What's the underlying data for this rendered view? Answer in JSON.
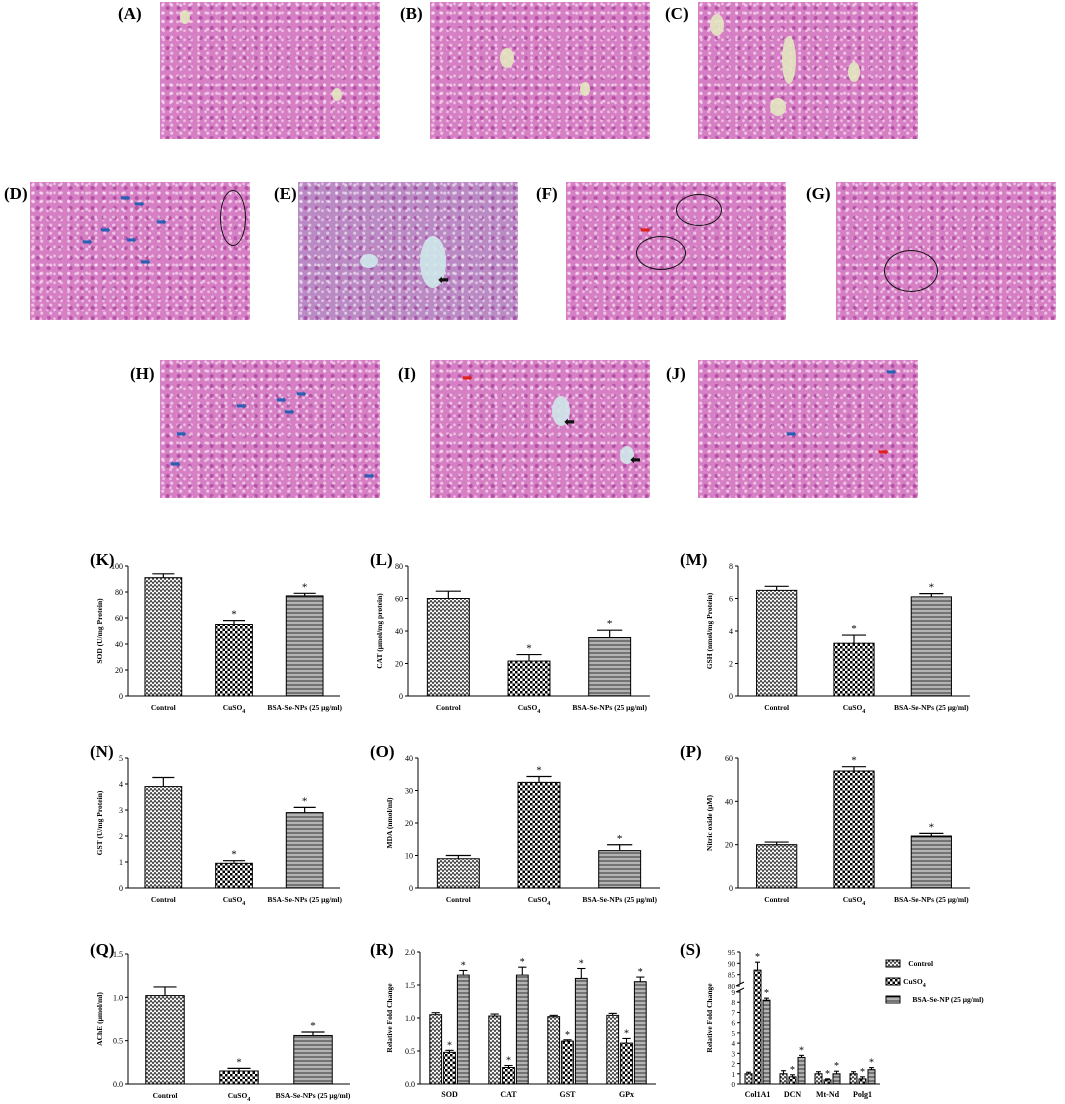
{
  "micro_panels": [
    {
      "label": "(A)",
      "arrows": [],
      "rings": 0
    },
    {
      "label": "(B)",
      "arrows": [],
      "rings": 0
    },
    {
      "label": "(C)",
      "arrows": [],
      "rings": 0
    },
    {
      "label": "(D)",
      "arrows": [
        "blue",
        "blue",
        "blue",
        "blue",
        "blue",
        "blue"
      ],
      "rings": 1
    },
    {
      "label": "(E)",
      "arrows": [
        "black"
      ],
      "rings": 0
    },
    {
      "label": "(F)",
      "arrows": [
        "red"
      ],
      "rings": 2
    },
    {
      "label": "(G)",
      "arrows": [],
      "rings": 1
    },
    {
      "label": "(H)",
      "arrows": [
        "blue",
        "blue",
        "blue",
        "blue",
        "blue",
        "blue",
        "blue"
      ],
      "rings": 0
    },
    {
      "label": "(I)",
      "arrows": [
        "red",
        "black",
        "black"
      ],
      "rings": 0
    },
    {
      "label": "(J)",
      "arrows": [
        "blue",
        "blue",
        "red"
      ],
      "rings": 0
    }
  ],
  "colors": {
    "tissue": "#d67fc4",
    "arrow_blue": "#2a5fb3",
    "arrow_red": "#e0201c",
    "arrow_black": "#111111"
  },
  "chart_data": [
    {
      "id": "K",
      "label": "(K)",
      "type": "bar",
      "ylabel": "SOD (U/mg Protein)",
      "categories": [
        "Control",
        "CuSO",
        "BSA-Se-NPs (25  μg/ml)"
      ],
      "values": [
        91,
        55,
        77
      ],
      "errors": [
        3,
        3,
        2
      ],
      "sig": [
        false,
        true,
        true
      ],
      "ylim": [
        0,
        100
      ],
      "yticks": [
        0,
        20,
        40,
        60,
        80,
        100
      ]
    },
    {
      "id": "L",
      "label": "(L)",
      "type": "bar",
      "ylabel": "CAT (μmol/mg protein)",
      "categories": [
        "Control",
        "CuSO",
        "BSA-Se-NPs (25  μg/ml)"
      ],
      "values": [
        60,
        21.5,
        36
      ],
      "errors": [
        4.5,
        4,
        4.5
      ],
      "sig": [
        false,
        true,
        true
      ],
      "ylim": [
        0,
        80
      ],
      "yticks": [
        0,
        20,
        40,
        60,
        80
      ]
    },
    {
      "id": "M",
      "label": "(M)",
      "type": "bar",
      "ylabel": "GSH (nmol/mg Protein)",
      "categories": [
        "Control",
        "CuSO",
        "BSA-Se-NPs (25  μg/ml)"
      ],
      "values": [
        6.5,
        3.25,
        6.1
      ],
      "errors": [
        0.25,
        0.5,
        0.2
      ],
      "sig": [
        false,
        true,
        true
      ],
      "ylim": [
        0,
        8
      ],
      "yticks": [
        0,
        2,
        4,
        6,
        8
      ]
    },
    {
      "id": "N",
      "label": "(N)",
      "type": "bar",
      "ylabel": "GST (U/mg Protein)",
      "categories": [
        "Control",
        "CuSO",
        "BSA-Se-NPs (25  μg/ml)"
      ],
      "values": [
        3.9,
        0.95,
        2.9
      ],
      "errors": [
        0.35,
        0.1,
        0.2
      ],
      "sig": [
        false,
        true,
        true
      ],
      "ylim": [
        0,
        5
      ],
      "yticks": [
        0,
        1,
        2,
        3,
        4,
        5
      ]
    },
    {
      "id": "O",
      "label": "(O)",
      "type": "bar",
      "ylabel": "MDA (nmol/ml)",
      "categories": [
        "Control",
        "CuSO",
        "BSA-Se-NPs (25  μg/ml)"
      ],
      "values": [
        9,
        32.5,
        11.5
      ],
      "errors": [
        1,
        1.8,
        1.8
      ],
      "sig": [
        false,
        true,
        true
      ],
      "ylim": [
        0,
        40
      ],
      "yticks": [
        0,
        10,
        20,
        30,
        40
      ]
    },
    {
      "id": "P",
      "label": "(P)",
      "type": "bar",
      "ylabel": "Nitric oxide (μM)",
      "categories": [
        "Control",
        "CuSO",
        "BSA-Se-NPs (25  μg/ml)"
      ],
      "values": [
        20,
        54,
        24
      ],
      "errors": [
        1.2,
        2,
        1.2
      ],
      "sig": [
        false,
        true,
        true
      ],
      "ylim": [
        0,
        60
      ],
      "yticks": [
        0,
        20,
        40,
        60
      ]
    },
    {
      "id": "Q",
      "label": "(Q)",
      "type": "bar",
      "ylabel": "AChE (μmol/ml)",
      "categories": [
        "Control",
        "CuSO",
        "BSA-Se-NPs (25  μg/ml)"
      ],
      "values": [
        1.02,
        0.15,
        0.56
      ],
      "errors": [
        0.1,
        0.03,
        0.04
      ],
      "sig": [
        false,
        true,
        true
      ],
      "ylim": [
        0,
        1.5
      ],
      "yticks": [
        "0.0",
        "0.5",
        "1.0",
        "1.5"
      ]
    },
    {
      "id": "R",
      "label": "(R)",
      "type": "bar",
      "ylabel": "Relative Fold Change",
      "categories": [
        "SOD",
        "CAT",
        "GST",
        "GPx"
      ],
      "series": [
        {
          "name": "Control",
          "values": [
            1.05,
            1.03,
            1.02,
            1.04
          ],
          "errors": [
            0.03,
            0.03,
            0.02,
            0.03
          ]
        },
        {
          "name": "CuSO4",
          "values": [
            0.48,
            0.25,
            0.65,
            0.62
          ],
          "errors": [
            0.03,
            0.03,
            0.02,
            0.07
          ]
        },
        {
          "name": "BSA-Se-NP (25 μg/ml)",
          "values": [
            1.65,
            1.65,
            1.6,
            1.55
          ],
          "errors": [
            0.07,
            0.12,
            0.15,
            0.07
          ]
        }
      ],
      "sig": [
        false,
        true,
        true
      ],
      "ylim": [
        0,
        2
      ],
      "yticks": [
        "0.0",
        "0.5",
        "1.0",
        "1.5",
        "2.0"
      ]
    },
    {
      "id": "S",
      "label": "(S)",
      "type": "bar",
      "ylabel": "Relative Fold Change",
      "categories": [
        "Col1A1",
        "DCN",
        "Mt-Nd",
        "Polg1"
      ],
      "series": [
        {
          "name": "Control",
          "values": [
            1,
            1,
            1,
            1
          ],
          "errors": [
            0.15,
            0.3,
            0.2,
            0.2
          ]
        },
        {
          "name": "CuSO",
          "values": [
            87,
            0.7,
            0.4,
            0.5
          ],
          "errors": [
            3.5,
            0.2,
            0.1,
            0.2
          ]
        },
        {
          "name": "BSA-Se-NP (25 μg/ml)",
          "values": [
            8.2,
            2.6,
            1,
            1.4
          ],
          "errors": [
            0.2,
            0.2,
            0.25,
            0.2
          ]
        }
      ],
      "sig": [
        false,
        true,
        true
      ],
      "ylim": [
        0,
        95
      ],
      "broken_axis": [
        9,
        80
      ],
      "yticks_low": [
        "0",
        "1",
        "2",
        "3",
        "4",
        "5",
        "6",
        "7",
        "8",
        "9"
      ],
      "yticks_high": [
        "80",
        "85",
        "90",
        "95"
      ],
      "legend": [
        "Control",
        "CuSO",
        "BSA-Se-NP (25 μg/ml)"
      ],
      "legend_position": "top-right"
    }
  ],
  "subscript4": "4",
  "sig_mark": "*"
}
